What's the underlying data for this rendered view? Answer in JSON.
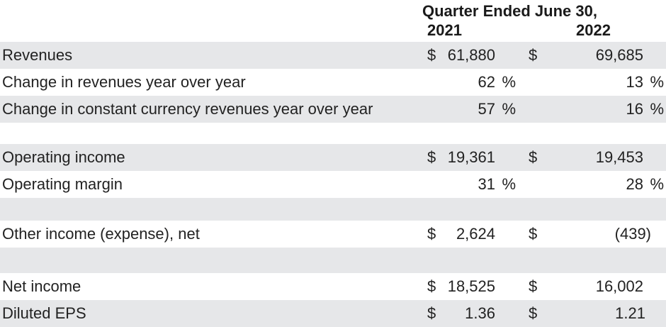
{
  "header": {
    "title": "Quarter Ended June 30,",
    "year_1": "2021",
    "year_2": "2022"
  },
  "rows": [
    {
      "label": "Revenues",
      "d21": "$",
      "v21": "61,880",
      "p21": "",
      "d22": "$",
      "v22": "69,685",
      "p22": ""
    },
    {
      "label": "Change in revenues year over year",
      "d21": "",
      "v21": "62",
      "p21": "%",
      "d22": "",
      "v22": "13",
      "p22": "%"
    },
    {
      "label": "Change in constant currency revenues year over year",
      "d21": "",
      "v21": "57",
      "p21": "%",
      "d22": "",
      "v22": "16",
      "p22": "%"
    },
    {
      "label": "",
      "d21": "",
      "v21": "",
      "p21": "",
      "d22": "",
      "v22": "",
      "p22": ""
    },
    {
      "label": "Operating income",
      "d21": "$",
      "v21": "19,361",
      "p21": "",
      "d22": "$",
      "v22": "19,453",
      "p22": ""
    },
    {
      "label": "Operating margin",
      "d21": "",
      "v21": "31",
      "p21": "%",
      "d22": "",
      "v22": "28",
      "p22": "%"
    },
    {
      "label": "",
      "d21": "",
      "v21": "",
      "p21": "",
      "d22": "",
      "v22": "",
      "p22": ""
    },
    {
      "label": "Other income (expense), net",
      "d21": "$",
      "v21": "2,624",
      "p21": "",
      "d22": "$",
      "v22": "(439)",
      "p22": ""
    },
    {
      "label": "",
      "d21": "",
      "v21": "",
      "p21": "",
      "d22": "",
      "v22": "",
      "p22": ""
    },
    {
      "label": "Net income",
      "d21": "$",
      "v21": "18,525",
      "p21": "",
      "d22": "$",
      "v22": "16,002",
      "p22": ""
    },
    {
      "label": "Diluted EPS",
      "d21": "$",
      "v21": "1.36",
      "p21": "",
      "d22": "$",
      "v22": "1.21",
      "p22": ""
    }
  ]
}
